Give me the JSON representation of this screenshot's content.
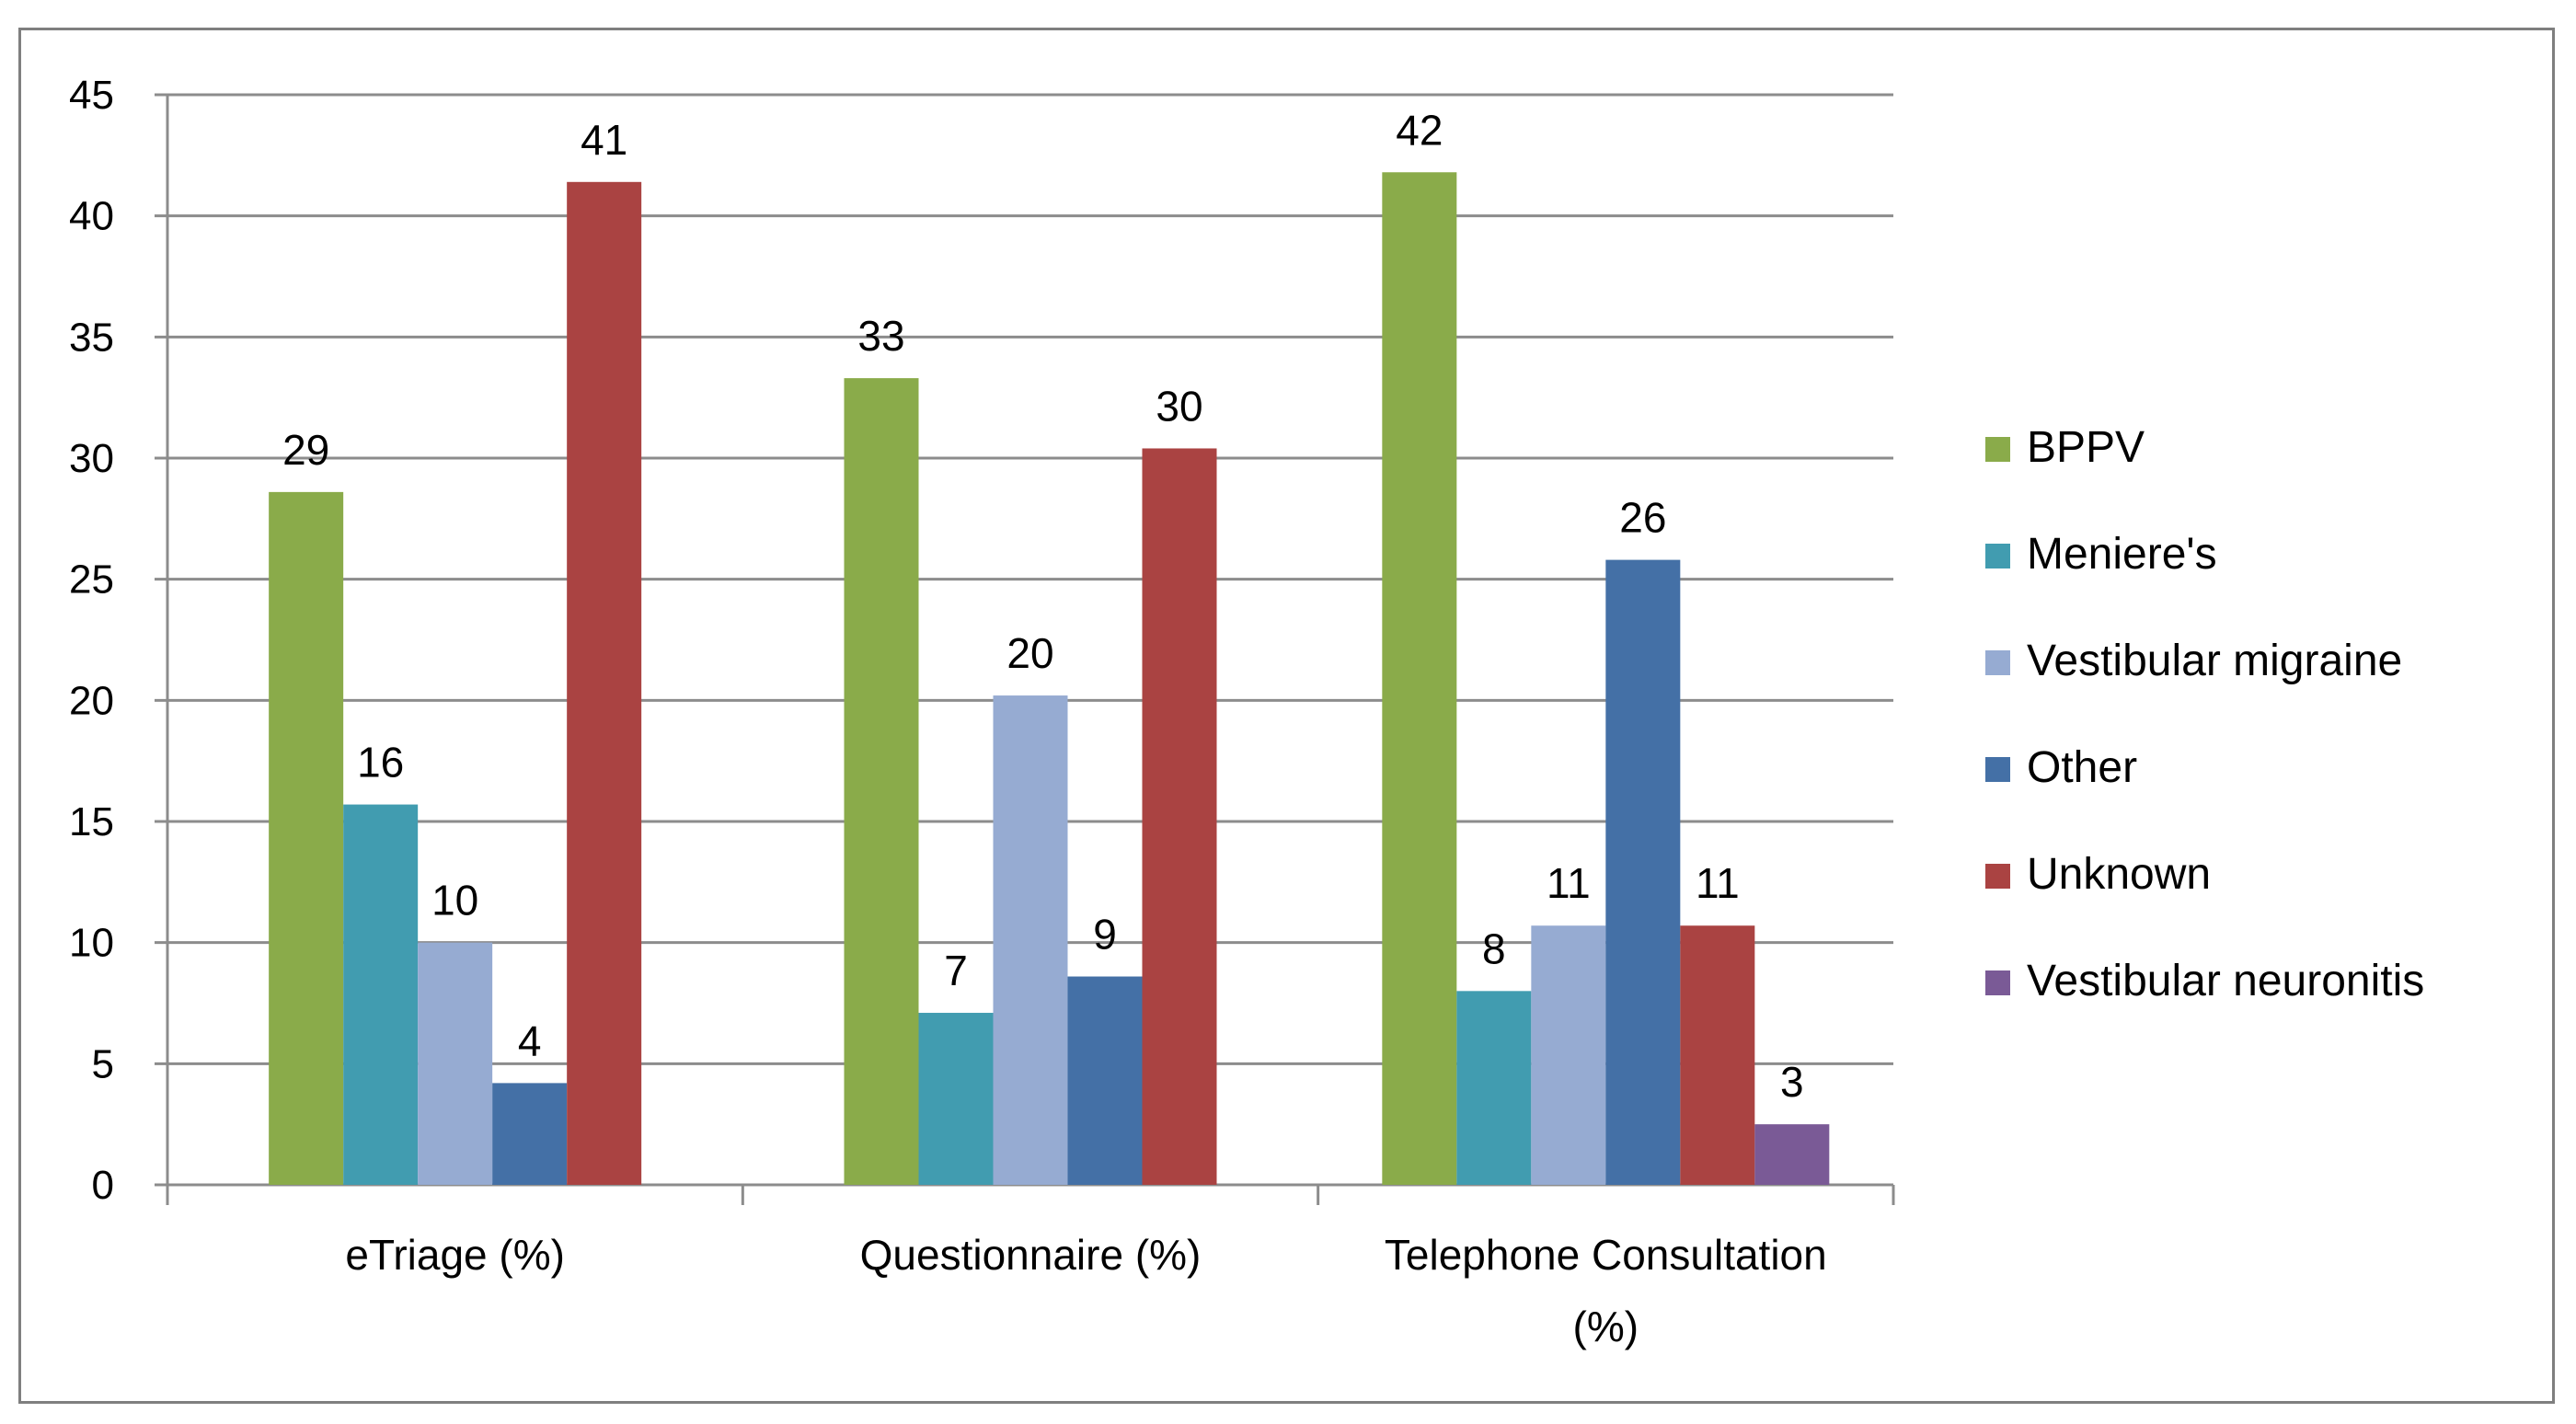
{
  "chart_data": {
    "type": "bar",
    "title": "",
    "xlabel": "",
    "ylabel": "",
    "ylim": [
      0,
      45
    ],
    "ytick_step": 5,
    "yticks": [
      "0",
      "5",
      "10",
      "15",
      "20",
      "25",
      "30",
      "35",
      "40",
      "45"
    ],
    "grid": true,
    "legend_position": "right",
    "categories": [
      "eTriage (%)",
      "Questionnaire (%)",
      "Telephone Consultation"
    ],
    "category_sublabels": [
      "",
      "",
      "(%)"
    ],
    "series": [
      {
        "name": "BPPV",
        "color": "#8aab4a",
        "values": [
          28.6,
          33.3,
          41.8
        ],
        "labels": [
          "29",
          "33",
          "42"
        ]
      },
      {
        "name": "Meniere's",
        "color": "#419cb0",
        "values": [
          15.7,
          7.1,
          8.0
        ],
        "labels": [
          "16",
          "7",
          "8"
        ]
      },
      {
        "name": "Vestibular migraine",
        "color": "#96abd2",
        "values": [
          10.0,
          20.2,
          10.7
        ],
        "labels": [
          "10",
          "20",
          "11"
        ]
      },
      {
        "name": "Other",
        "color": "#4470a6",
        "values": [
          4.2,
          8.6,
          25.8
        ],
        "labels": [
          "4",
          "9",
          "26"
        ]
      },
      {
        "name": "Unknown",
        "color": "#aa4342",
        "values": [
          41.4,
          30.4,
          10.7
        ],
        "labels": [
          "41",
          "30",
          "11"
        ]
      },
      {
        "name": "Vestibular neuronitis",
        "color": "#7a5a96",
        "values": [
          null,
          null,
          2.5
        ],
        "labels": [
          "",
          "",
          "3"
        ]
      }
    ]
  }
}
